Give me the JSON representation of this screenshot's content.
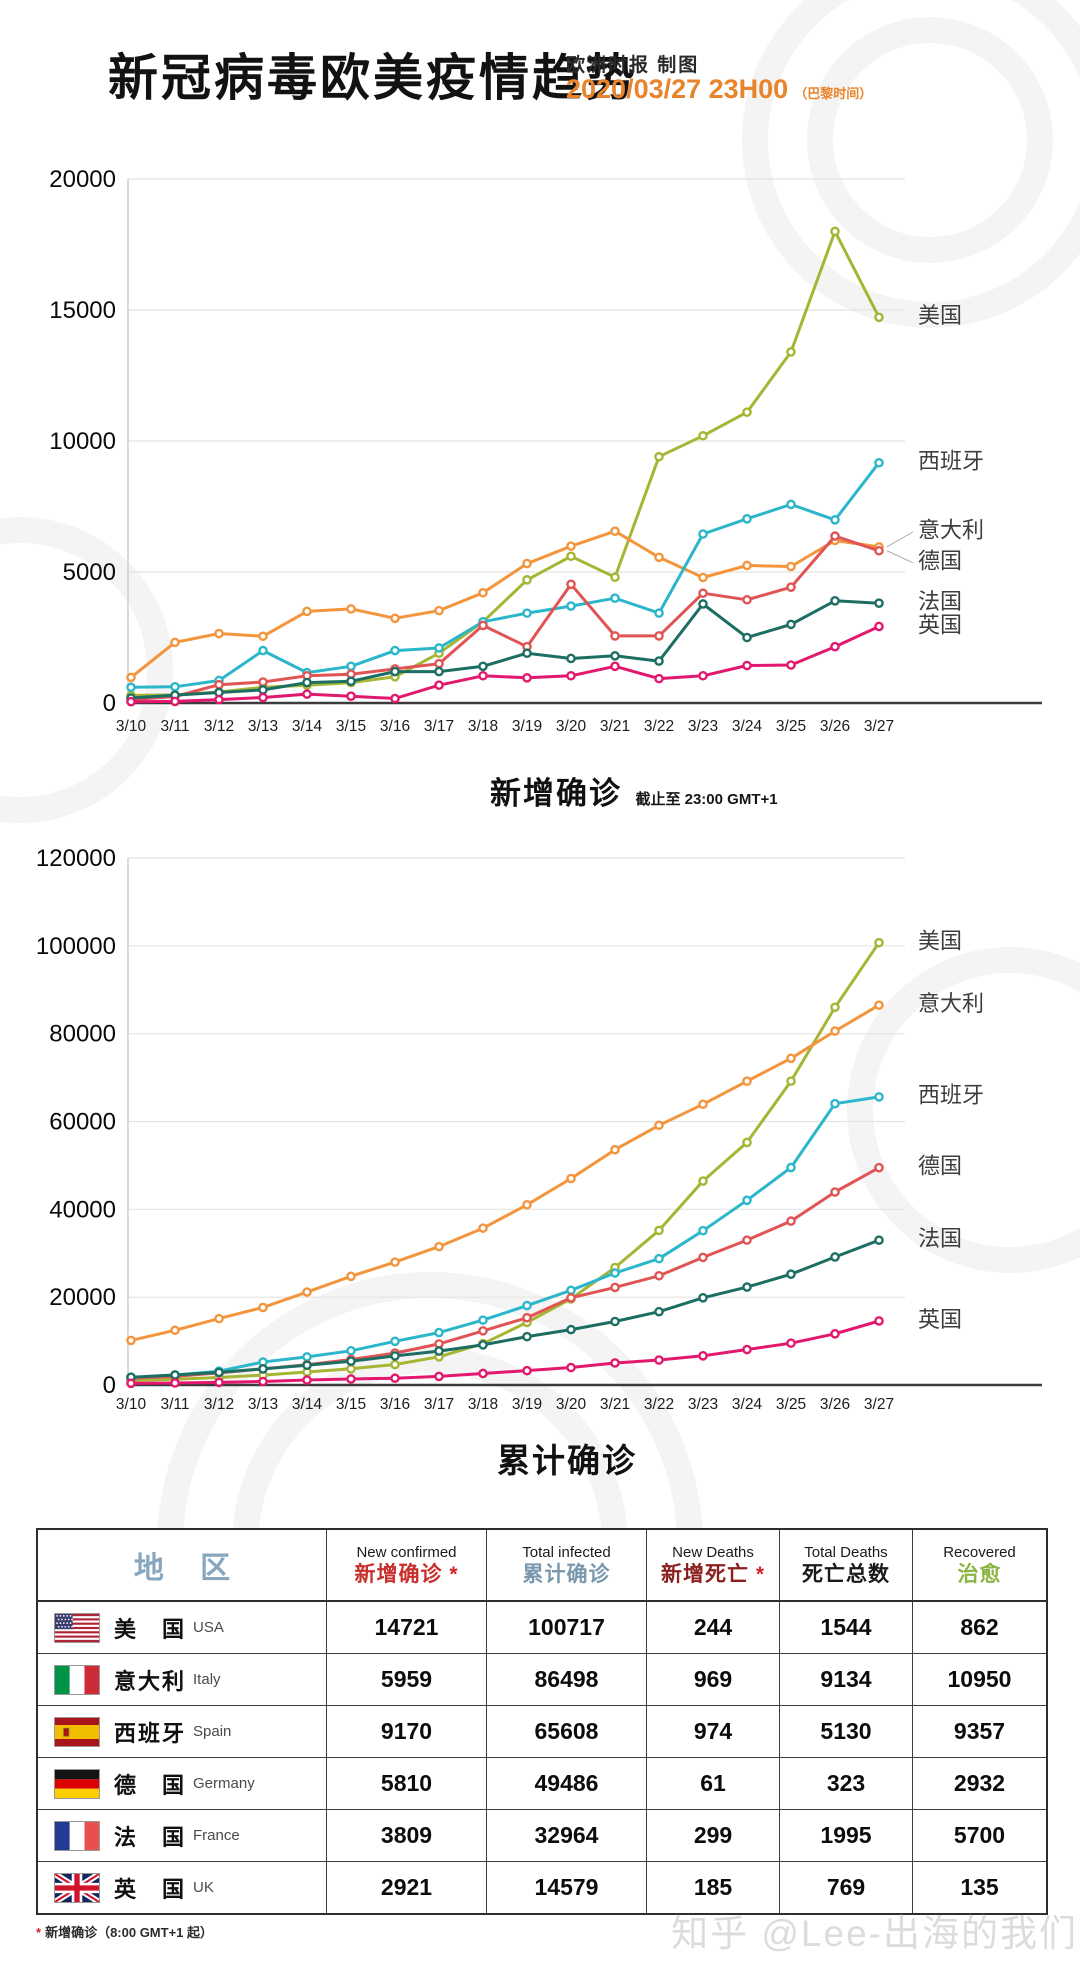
{
  "header": {
    "title": "新冠病毒欧美疫情趋势",
    "byline": "欧洲时报 制图",
    "datetime": "2020/03/27 23H00",
    "datetime_suffix": "（巴黎时间）"
  },
  "chart_data": [
    {
      "type": "line",
      "title": "新增确诊",
      "title_note": "截止至 23:00 GMT+1",
      "categories": [
        "3/10",
        "3/11",
        "3/12",
        "3/13",
        "3/14",
        "3/15",
        "3/16",
        "3/17",
        "3/18",
        "3/19",
        "3/20",
        "3/21",
        "3/22",
        "3/23",
        "3/24",
        "3/25",
        "3/26",
        "3/27"
      ],
      "ylim": [
        0,
        20000
      ],
      "ytick_step": 5000,
      "grid": true,
      "legend_position": "right",
      "series": [
        {
          "name": "美国",
          "en": "USA",
          "color": "#a6b534",
          "values": [
            290,
            310,
            420,
            600,
            680,
            780,
            1000,
            1900,
            3100,
            4700,
            5600,
            4800,
            9400,
            10200,
            11100,
            13400,
            18000,
            14721
          ]
        },
        {
          "name": "意大利",
          "en": "Italy",
          "color": "#f3953c",
          "values": [
            977,
            2313,
            2651,
            2547,
            3497,
            3590,
            3233,
            3526,
            4207,
            5322,
            5986,
            6557,
            5560,
            4789,
            5249,
            5210,
            6203,
            5959
          ],
          "label_dy": -15,
          "connector": true
        },
        {
          "name": "西班牙",
          "en": "Spain",
          "color": "#2cb6c9",
          "values": [
            600,
            620,
            860,
            2000,
            1160,
            1400,
            2000,
            2100,
            3100,
            3430,
            3700,
            4000,
            3430,
            6450,
            7030,
            7580,
            6990,
            9170
          ]
        },
        {
          "name": "德国",
          "en": "Germany",
          "color": "#e15454",
          "values": [
            130,
            250,
            700,
            800,
            1040,
            1100,
            1300,
            1500,
            2960,
            2150,
            4530,
            2560,
            2560,
            4190,
            3940,
            4420,
            6370,
            5810
          ],
          "label_dy": 12,
          "connector": true
        },
        {
          "name": "法国",
          "en": "France",
          "color": "#1c6e63",
          "values": [
            190,
            300,
            400,
            500,
            780,
            830,
            1200,
            1200,
            1400,
            1900,
            1700,
            1800,
            1600,
            3780,
            2500,
            3000,
            3900,
            3809
          ]
        },
        {
          "name": "英国",
          "en": "UK",
          "color": "#e2186f",
          "values": [
            50,
            60,
            130,
            210,
            340,
            260,
            170,
            680,
            1040,
            960,
            1040,
            1400,
            930,
            1040,
            1430,
            1450,
            2150,
            2921
          ]
        }
      ]
    },
    {
      "type": "line",
      "title": "累计确诊",
      "title_note": "",
      "categories": [
        "3/10",
        "3/11",
        "3/12",
        "3/13",
        "3/14",
        "3/15",
        "3/16",
        "3/17",
        "3/18",
        "3/19",
        "3/20",
        "3/21",
        "3/22",
        "3/23",
        "3/24",
        "3/25",
        "3/26",
        "3/27"
      ],
      "ylim": [
        0,
        120000
      ],
      "ytick_step": 20000,
      "grid": true,
      "legend_position": "right",
      "series": [
        {
          "name": "美国",
          "en": "USA",
          "color": "#a6b534",
          "values": [
            994,
            1301,
            1697,
            2247,
            2954,
            3680,
            4663,
            6421,
            9415,
            14250,
            19624,
            26747,
            35206,
            46442,
            55231,
            69194,
            86012,
            100717
          ]
        },
        {
          "name": "意大利",
          "en": "Italy",
          "color": "#f3953c",
          "values": [
            10149,
            12462,
            15113,
            17660,
            21157,
            24747,
            27980,
            31506,
            35713,
            41035,
            47021,
            53578,
            59138,
            63927,
            69176,
            74386,
            80589,
            86498
          ]
        },
        {
          "name": "西班牙",
          "en": "Spain",
          "color": "#2cb6c9",
          "values": [
            1695,
            2277,
            3146,
            5232,
            6391,
            7798,
            9942,
            11940,
            14769,
            18077,
            21571,
            25496,
            28768,
            35136,
            42058,
            49515,
            64059,
            65608
          ]
        },
        {
          "name": "德国",
          "en": "Germany",
          "color": "#e15454",
          "values": [
            1565,
            1966,
            2745,
            3675,
            4599,
            5813,
            7272,
            9367,
            12327,
            15320,
            19848,
            22213,
            24873,
            29056,
            32986,
            37323,
            43938,
            49486
          ]
        },
        {
          "name": "法国",
          "en": "France",
          "color": "#1c6e63",
          "values": [
            1784,
            2281,
            2876,
            3661,
            4499,
            5423,
            6633,
            7730,
            9134,
            11010,
            12612,
            14459,
            16689,
            19856,
            22302,
            25233,
            29155,
            32964
          ]
        },
        {
          "name": "英国",
          "en": "UK",
          "color": "#e2186f",
          "values": [
            373,
            456,
            590,
            797,
            1140,
            1372,
            1543,
            1950,
            2626,
            3269,
            3983,
            5018,
            5683,
            6650,
            8077,
            9529,
            11658,
            14579
          ]
        }
      ]
    }
  ],
  "table": {
    "region_header": "地 区",
    "region_header_color": "#86a7bd",
    "columns": [
      {
        "en": "New confirmed",
        "zh": "新增确诊",
        "star": "*",
        "color": "#c9302c"
      },
      {
        "en": "Total infected",
        "zh": "累计确诊",
        "star": "",
        "color": "#7a98ad"
      },
      {
        "en": "New Deaths",
        "zh": "新增死亡",
        "star": "*",
        "color": "#8b2020"
      },
      {
        "en": "Total Deaths",
        "zh": "死亡总数",
        "star": "",
        "color": "#1a1a1a"
      },
      {
        "en": "Recovered",
        "zh": "治愈",
        "star": "",
        "color": "#8ab542"
      }
    ],
    "rows": [
      {
        "zh": "美　国",
        "en": "USA",
        "flag": "us",
        "values": [
          14721,
          100717,
          244,
          1544,
          862
        ]
      },
      {
        "zh": "意大利",
        "en": "Italy",
        "flag": "it",
        "values": [
          5959,
          86498,
          969,
          9134,
          10950
        ]
      },
      {
        "zh": "西班牙",
        "en": "Spain",
        "flag": "es",
        "values": [
          9170,
          65608,
          974,
          5130,
          9357
        ]
      },
      {
        "zh": "德　国",
        "en": "Germany",
        "flag": "de",
        "values": [
          5810,
          49486,
          61,
          323,
          2932
        ]
      },
      {
        "zh": "法　国",
        "en": "France",
        "flag": "fr",
        "values": [
          3809,
          32964,
          299,
          1995,
          5700
        ]
      },
      {
        "zh": "英　国",
        "en": "UK",
        "flag": "gb",
        "values": [
          2921,
          14579,
          185,
          769,
          135
        ]
      }
    ]
  },
  "footnote": {
    "star": "*",
    "text": "新增确诊（8:00 GMT+1 起）"
  },
  "watermark": "知乎 @Lee-出海的我们",
  "colors": {
    "accent_orange": "#e8842b",
    "grid": "#e4e4e4",
    "axis": "#3b3b3b"
  }
}
